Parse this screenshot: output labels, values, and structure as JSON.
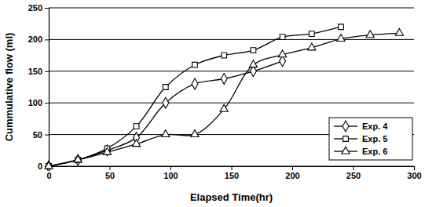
{
  "chart_data": {
    "type": "line",
    "x_label": "Elapsed Time(hr)",
    "y_label": "Cummulative flow (ml)",
    "xlim": [
      0,
      300
    ],
    "xticks": [
      0,
      50,
      100,
      150,
      200,
      250,
      300
    ],
    "ylim": [
      0,
      250
    ],
    "yticks": [
      0,
      50,
      100,
      150,
      200,
      250
    ],
    "grid": true,
    "legend": "lower right",
    "series": [
      {
        "name": "Exp. 4",
        "color": "#000000",
        "marker": "diamond",
        "line_style": "solid",
        "x": [
          0,
          24,
          48,
          72,
          96,
          120,
          144,
          168,
          192
        ],
        "values": [
          0,
          10,
          25,
          45,
          100,
          130,
          138,
          150,
          166
        ]
      },
      {
        "name": "Exp. 5",
        "color": "#000000",
        "marker": "square",
        "line_style": "solid",
        "x": [
          0,
          24,
          48,
          72,
          96,
          120,
          144,
          168,
          192,
          216,
          240
        ],
        "values": [
          0,
          10,
          28,
          63,
          125,
          160,
          175,
          183,
          204,
          209,
          220
        ]
      },
      {
        "name": "Exp. 6",
        "color": "#000000",
        "marker": "triangle",
        "line_style": "solid",
        "x": [
          0,
          24,
          48,
          72,
          96,
          120,
          144,
          168,
          192,
          216,
          240,
          264,
          288
        ],
        "values": [
          0,
          10,
          22,
          35,
          50,
          50,
          90,
          160,
          176,
          187,
          201,
          207,
          210
        ]
      }
    ]
  }
}
